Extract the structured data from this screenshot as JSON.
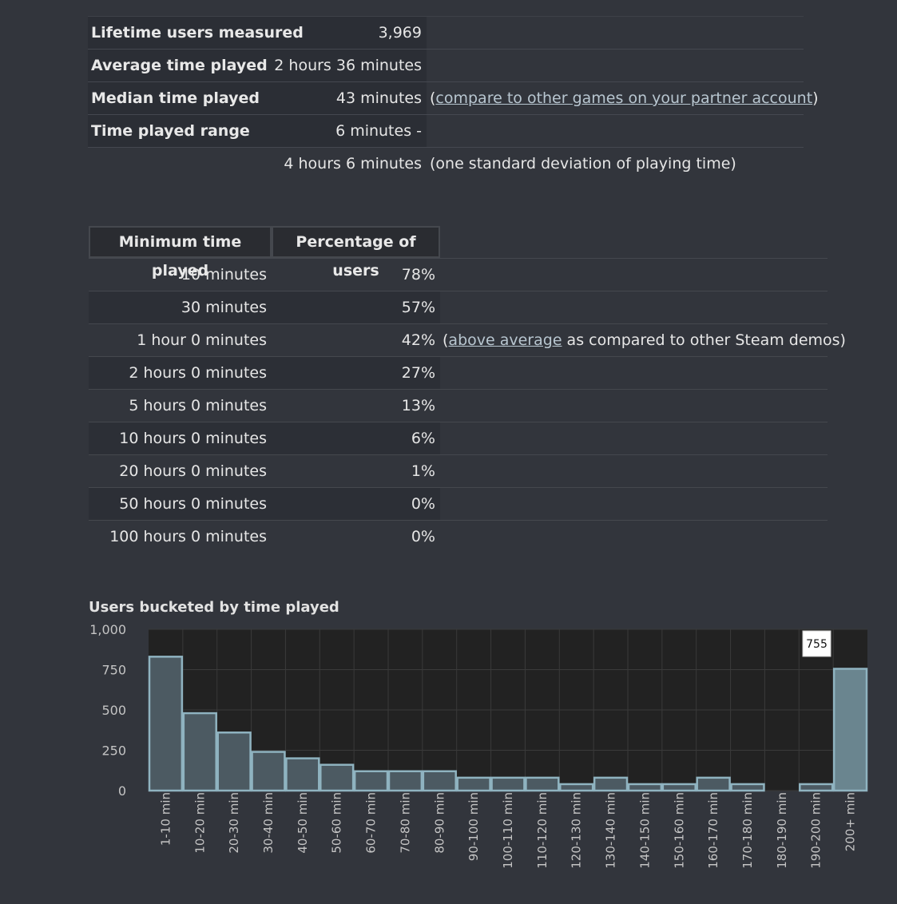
{
  "summary": {
    "rows": [
      {
        "label": "Lifetime users measured",
        "value": "3,969"
      },
      {
        "label": "Average time played",
        "value": "2 hours 36 minutes"
      },
      {
        "label": "Median time played",
        "value": "43 minutes",
        "note_prefix": "(",
        "note_link": "compare to other games on your partner account",
        "note_suffix": ")"
      },
      {
        "label": "Time played range",
        "value": "6 minutes -"
      },
      {
        "label": "",
        "value": "4 hours 6 minutes",
        "note_text": "(one standard deviation of playing time)"
      }
    ]
  },
  "min_table": {
    "headers": [
      "Minimum time played",
      "Percentage of users"
    ],
    "rows": [
      {
        "time": "10 minutes",
        "pct": "78%"
      },
      {
        "time": "30 minutes",
        "pct": "57%"
      },
      {
        "time": "1 hour 0 minutes",
        "pct": "42%",
        "note_prefix": "(",
        "note_link": "above average",
        "note_suffix": " as compared to other Steam demos)"
      },
      {
        "time": "2 hours 0 minutes",
        "pct": "27%"
      },
      {
        "time": "5 hours 0 minutes",
        "pct": "13%"
      },
      {
        "time": "10 hours 0 minutes",
        "pct": "6%"
      },
      {
        "time": "20 hours 0 minutes",
        "pct": "1%"
      },
      {
        "time": "50 hours 0 minutes",
        "pct": "0%"
      },
      {
        "time": "100 hours 0 minutes",
        "pct": "0%"
      }
    ]
  },
  "chart": {
    "title": "Users bucketed by time played",
    "tooltip": "755"
  },
  "chart_data": {
    "type": "bar",
    "title": "Users bucketed by time played",
    "categories": [
      "1-10 min",
      "10-20 min",
      "20-30 min",
      "30-40 min",
      "40-50 min",
      "50-60 min",
      "60-70 min",
      "70-80 min",
      "80-90 min",
      "90-100 min",
      "100-110 min",
      "110-120 min",
      "120-130 min",
      "130-140 min",
      "140-150 min",
      "150-160 min",
      "160-170 min",
      "170-180 min",
      "180-190 min",
      "190-200 min",
      "200+ min"
    ],
    "values": [
      830,
      480,
      360,
      240,
      200,
      160,
      120,
      120,
      120,
      80,
      80,
      80,
      40,
      80,
      40,
      40,
      80,
      40,
      0,
      40,
      755
    ],
    "yticks": [
      "0",
      "250",
      "500",
      "750",
      "1,000"
    ],
    "ylim": [
      0,
      1000
    ],
    "grid": true,
    "colors": {
      "bar_fill": "#4c5a62",
      "bar_stroke": "#8fb3c0",
      "highlight_fill": "#6a858f",
      "plot_bg": "#222222",
      "grid": "#3a3a3a"
    }
  }
}
